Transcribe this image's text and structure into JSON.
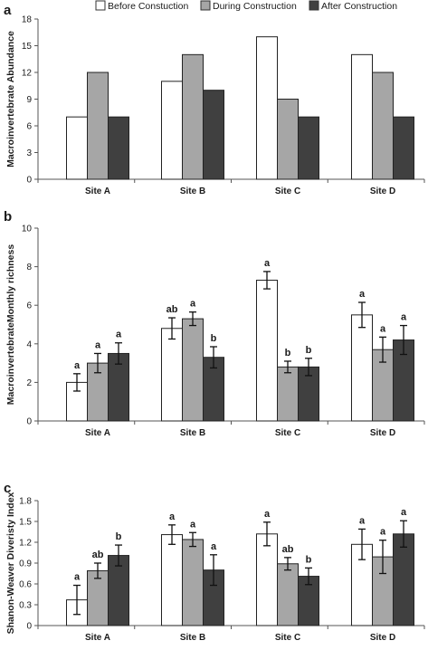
{
  "legend": [
    {
      "label": "Before Constuction",
      "color": "#ffffff"
    },
    {
      "label": "During Construction",
      "color": "#a6a6a6"
    },
    {
      "label": "After Construction",
      "color": "#404040"
    }
  ],
  "chart_data": [
    {
      "panel": "a",
      "type": "bar",
      "ylabel": "Macroinvertebrate Abundance",
      "ylim": [
        0,
        18
      ],
      "yticks": [
        "0",
        "3",
        "6",
        "9",
        "12",
        "15",
        "18"
      ],
      "categories": [
        "Site A",
        "Site B",
        "Site C",
        "Site D"
      ],
      "series": [
        {
          "name": "Before Constuction",
          "values": [
            7,
            11,
            16,
            14
          ]
        },
        {
          "name": "During Construction",
          "values": [
            12,
            14,
            9,
            12
          ]
        },
        {
          "name": "After Construction",
          "values": [
            7,
            10,
            7,
            7
          ]
        }
      ]
    },
    {
      "panel": "b",
      "type": "bar",
      "ylabel": "MacroinvertebrateMonthly richness",
      "ylim": [
        0,
        10
      ],
      "yticks": [
        "0",
        "2",
        "4",
        "6",
        "8",
        "10"
      ],
      "categories": [
        "Site A",
        "Site B",
        "Site C",
        "Site D"
      ],
      "series": [
        {
          "name": "Before Constuction",
          "values": [
            2.0,
            4.8,
            7.3,
            5.5
          ],
          "errors": [
            0.45,
            0.55,
            0.45,
            0.65
          ],
          "labels": [
            "a",
            "ab",
            "a",
            "a"
          ]
        },
        {
          "name": "During Construction",
          "values": [
            3.0,
            5.3,
            2.8,
            3.7
          ],
          "errors": [
            0.5,
            0.35,
            0.3,
            0.65
          ],
          "labels": [
            "a",
            "a",
            "b",
            "a"
          ]
        },
        {
          "name": "After Construction",
          "values": [
            3.5,
            3.3,
            2.8,
            4.2
          ],
          "errors": [
            0.55,
            0.55,
            0.45,
            0.75
          ],
          "labels": [
            "a",
            "b",
            "b",
            "a"
          ]
        }
      ]
    },
    {
      "panel": "c",
      "type": "bar",
      "ylabel": "Shanon-Weaver Diveristy Index",
      "ylim": [
        0,
        1.8
      ],
      "yticks": [
        "0",
        "0.3",
        "0.6",
        "0.9",
        "1.2",
        "1.5",
        "1.8"
      ],
      "categories": [
        "Site A",
        "Site B",
        "Site C",
        "Site D"
      ],
      "series": [
        {
          "name": "Before Constuction",
          "values": [
            0.37,
            1.31,
            1.32,
            1.17
          ],
          "errors": [
            0.21,
            0.14,
            0.17,
            0.22
          ],
          "labels": [
            "a",
            "a",
            "a",
            "a"
          ]
        },
        {
          "name": "During Construction",
          "values": [
            0.79,
            1.24,
            0.89,
            0.99
          ],
          "errors": [
            0.11,
            0.1,
            0.09,
            0.24
          ],
          "labels": [
            "ab",
            "a",
            "ab",
            "a"
          ]
        },
        {
          "name": "After Construction",
          "values": [
            1.01,
            0.8,
            0.71,
            1.32
          ],
          "errors": [
            0.15,
            0.22,
            0.12,
            0.19
          ],
          "labels": [
            "b",
            "a",
            "b",
            "a"
          ]
        }
      ]
    }
  ]
}
